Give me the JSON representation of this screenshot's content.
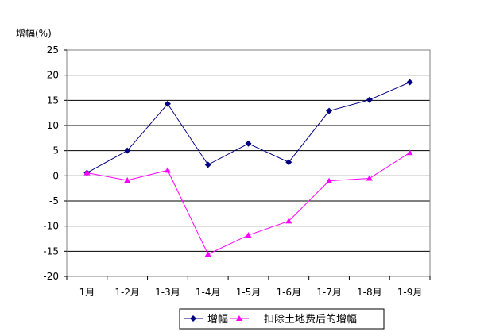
{
  "chart_data": {
    "type": "line",
    "ylabel": "增幅(%)",
    "ylim": [
      -20,
      25
    ],
    "yticks": [
      -20,
      -15,
      -10,
      -5,
      0,
      5,
      10,
      15,
      20,
      25
    ],
    "categories": [
      "1月",
      "1-2月",
      "1-3月",
      "1-4月",
      "1-5月",
      "1-6月",
      "1-7月",
      "1-8月",
      "1-9月"
    ],
    "grid": true,
    "legend_position": "bottom-right",
    "series": [
      {
        "name": "增幅",
        "color": "#000080",
        "marker": "diamond",
        "values": [
          0.6,
          5.0,
          14.3,
          2.2,
          6.4,
          2.7,
          12.9,
          15.1,
          18.6
        ]
      },
      {
        "name": "扣除土地费后的增幅",
        "color": "#ff00ff",
        "marker": "triangle",
        "values": [
          0.6,
          -0.9,
          1.1,
          -15.6,
          -11.8,
          -9.0,
          -1.0,
          -0.5,
          4.6
        ]
      }
    ]
  }
}
